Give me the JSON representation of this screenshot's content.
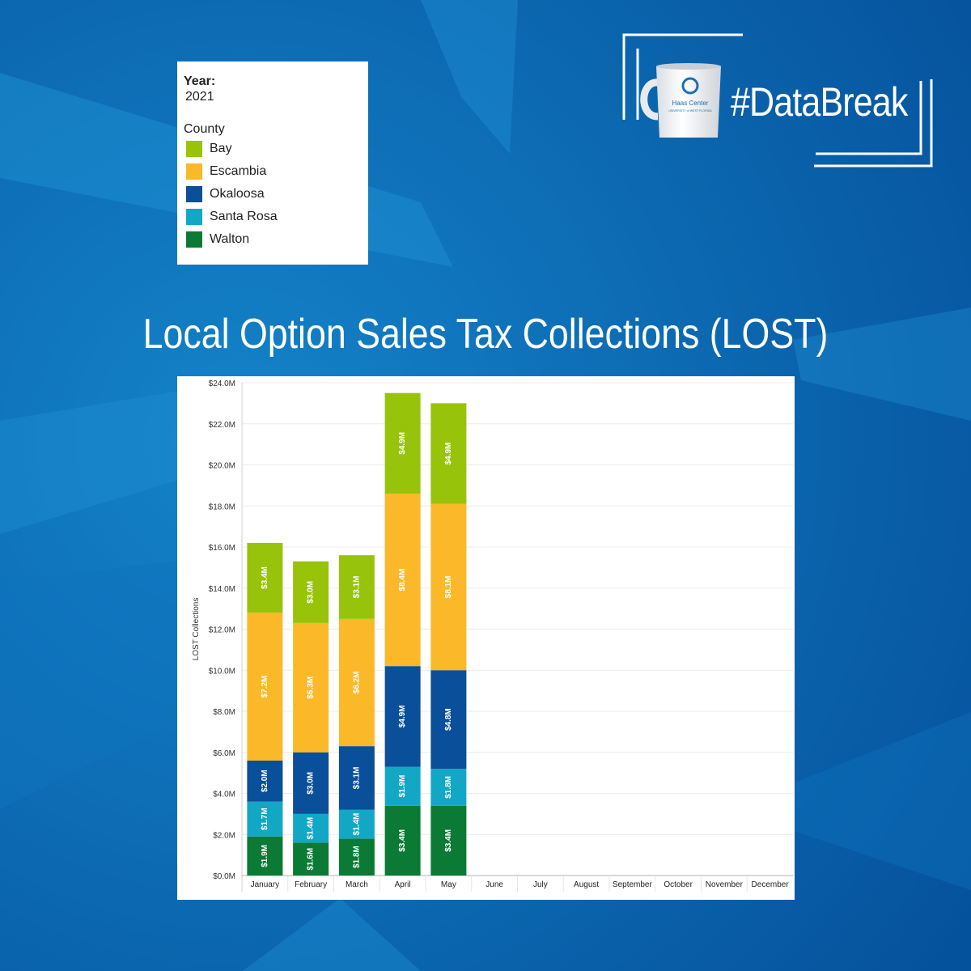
{
  "header": {
    "hashtag": "#DataBreak",
    "mug_text": [
      "Haas Center",
      "UNIVERSITY of WEST FLORIDA"
    ]
  },
  "legend": {
    "year_label": "Year:",
    "year_value": "2021",
    "county_title": "County",
    "items": [
      {
        "label": "Bay",
        "color": "#97c30a"
      },
      {
        "label": "Escambia",
        "color": "#fbb829"
      },
      {
        "label": "Okaloosa",
        "color": "#0a4f99"
      },
      {
        "label": "Santa Rosa",
        "color": "#13a7c6"
      },
      {
        "label": "Walton",
        "color": "#0a7a34"
      }
    ]
  },
  "page_title": "Local Option Sales Tax Collections (LOST)",
  "chart_data": {
    "type": "bar",
    "stacked": true,
    "categories": [
      "January",
      "February",
      "March",
      "April",
      "May",
      "June",
      "July",
      "August",
      "September",
      "October",
      "November",
      "December"
    ],
    "ylabel": "LOST Collections",
    "ylim": [
      0,
      24
    ],
    "yticks": [
      "$0.0M",
      "$2.0M",
      "$4.0M",
      "$6.0M",
      "$8.0M",
      "$10.0M",
      "$12.0M",
      "$14.0M",
      "$16.0M",
      "$18.0M",
      "$20.0M",
      "$22.0M",
      "$24.0M"
    ],
    "grid": true,
    "series": [
      {
        "name": "Walton",
        "color": "#0a7a34",
        "values": [
          1.9,
          1.6,
          1.8,
          3.4,
          3.4,
          null,
          null,
          null,
          null,
          null,
          null,
          null
        ],
        "labels": [
          "$1.9M",
          "$1.6M",
          "$1.8M",
          "$3.4M",
          "$3.4M"
        ]
      },
      {
        "name": "Santa Rosa",
        "color": "#13a7c6",
        "values": [
          1.7,
          1.4,
          1.4,
          1.9,
          1.8,
          null,
          null,
          null,
          null,
          null,
          null,
          null
        ],
        "labels": [
          "$1.7M",
          "$1.4M",
          "$1.4M",
          "$1.9M",
          "$1.8M"
        ]
      },
      {
        "name": "Okaloosa",
        "color": "#0a4f99",
        "values": [
          2.0,
          3.0,
          3.1,
          4.9,
          4.8,
          null,
          null,
          null,
          null,
          null,
          null,
          null
        ],
        "labels": [
          "$2.0M",
          "$3.0M",
          "$3.1M",
          "$4.9M",
          "$4.8M"
        ]
      },
      {
        "name": "Escambia",
        "color": "#fbb829",
        "values": [
          7.2,
          6.3,
          6.2,
          8.4,
          8.1,
          null,
          null,
          null,
          null,
          null,
          null,
          null
        ],
        "labels": [
          "$7.2M",
          "$6.3M",
          "$6.2M",
          "$8.4M",
          "$8.1M"
        ]
      },
      {
        "name": "Bay",
        "color": "#97c30a",
        "values": [
          3.4,
          3.0,
          3.1,
          4.9,
          4.9,
          null,
          null,
          null,
          null,
          null,
          null,
          null
        ],
        "labels": [
          "$3.4M",
          "$3.0M",
          "$3.1M",
          "$4.9M",
          "$4.9M"
        ]
      }
    ]
  }
}
